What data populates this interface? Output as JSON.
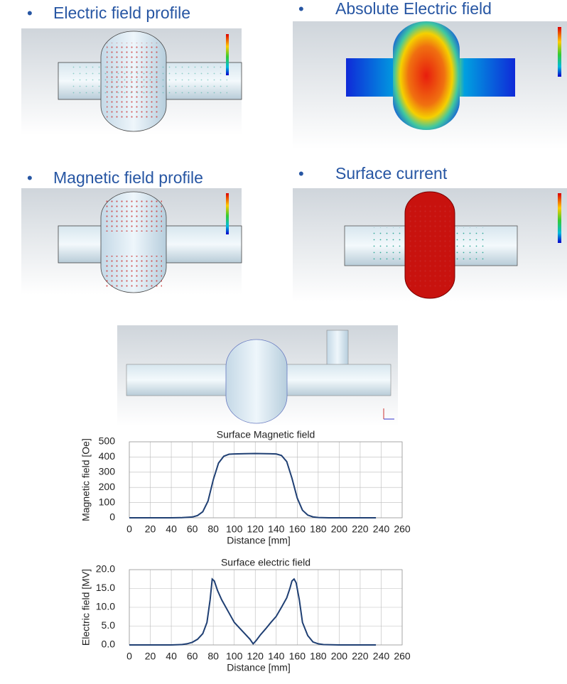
{
  "panels": [
    {
      "title": "Electric field profile"
    },
    {
      "title": "Absolute Electric field"
    },
    {
      "title": "Magnetic field profile"
    },
    {
      "title": "Surface current"
    }
  ],
  "chart_data": [
    {
      "type": "line",
      "title": "Surface Magnetic field",
      "x_label": "Distance [mm]",
      "y_label": "Magnetic field [Oe]",
      "x": [
        0,
        10,
        20,
        30,
        40,
        50,
        60,
        65,
        70,
        75,
        80,
        85,
        90,
        95,
        100,
        110,
        120,
        130,
        140,
        145,
        150,
        155,
        160,
        165,
        170,
        175,
        180,
        190,
        200,
        210,
        220,
        235
      ],
      "values": [
        0,
        0,
        0,
        0,
        0,
        1,
        5,
        15,
        40,
        110,
        250,
        360,
        405,
        418,
        420,
        422,
        423,
        422,
        420,
        410,
        370,
        260,
        130,
        50,
        18,
        6,
        2,
        0,
        0,
        0,
        0,
        0
      ],
      "color": "#1f3f73",
      "xlim": [
        0,
        260
      ],
      "xticks": [
        0,
        20,
        40,
        60,
        80,
        100,
        120,
        140,
        160,
        180,
        200,
        220,
        240,
        260
      ],
      "ylim": [
        0,
        500
      ],
      "yticks": [
        0,
        100,
        200,
        300,
        400,
        500
      ],
      "grid": true
    },
    {
      "type": "line",
      "title": "Surface electric field",
      "x_label": "Distance [mm]",
      "y_label": "Electric field [MV]",
      "x": [
        0,
        20,
        40,
        50,
        55,
        60,
        65,
        70,
        74,
        77,
        79,
        81,
        84,
        88,
        95,
        100,
        105,
        110,
        115,
        118,
        121,
        125,
        130,
        135,
        140,
        145,
        150,
        153,
        155,
        157,
        159,
        162,
        165,
        170,
        175,
        180,
        185,
        200,
        220,
        235
      ],
      "values": [
        0,
        0,
        0,
        0.1,
        0.3,
        0.7,
        1.5,
        3,
        6,
        12,
        17.5,
        17,
        14.5,
        12,
        8.5,
        6,
        4.5,
        3,
        1.5,
        0.3,
        1.2,
        2.7,
        4.3,
        6,
        7.6,
        10,
        12.5,
        15,
        17,
        17.5,
        16.5,
        12,
        6,
        2.5,
        0.8,
        0.3,
        0.1,
        0,
        0,
        0
      ],
      "color": "#1f3f73",
      "xlim": [
        0,
        260
      ],
      "xticks": [
        0,
        20,
        40,
        60,
        80,
        100,
        120,
        140,
        160,
        180,
        200,
        220,
        240,
        260
      ],
      "ylim": [
        0,
        20
      ],
      "yticks": [
        {
          "value": 0,
          "label": "0.0"
        },
        {
          "value": 5,
          "label": "5.0"
        },
        {
          "value": 10,
          "label": "10.0"
        },
        {
          "value": 15,
          "label": "15.0"
        },
        {
          "value": 20,
          "label": "20.0"
        }
      ],
      "grid": true
    }
  ]
}
